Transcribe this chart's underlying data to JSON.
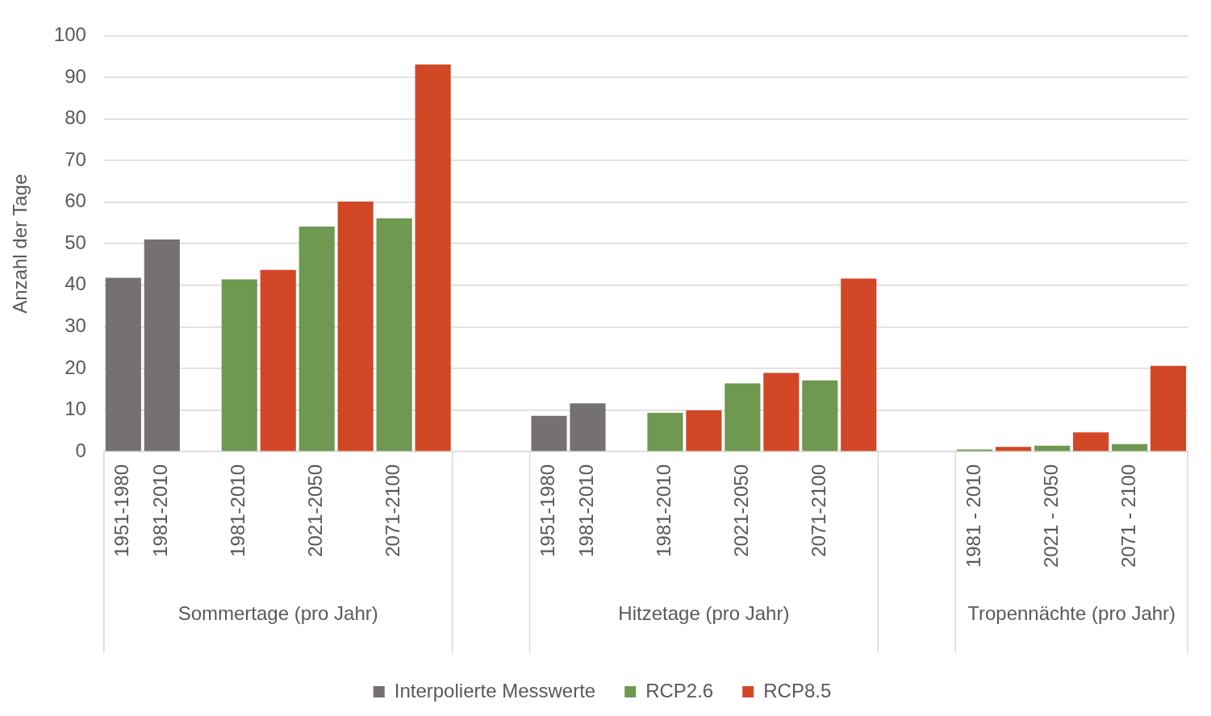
{
  "chart_data": {
    "type": "bar",
    "ylabel": "Anzahl der Tage",
    "categories": [
      "1951-1980",
      "1981-2010",
      null,
      "1981-2010",
      null,
      "2021-2050",
      null,
      "2071-2100",
      null,
      null,
      null,
      "1951-1980",
      "1981-2010",
      null,
      "1981-2010",
      null,
      "2021-2050",
      null,
      "2071-2100",
      null,
      null,
      null,
      "1981 - 2010",
      null,
      "2021 - 2050",
      null,
      "2071 - 2100",
      null
    ],
    "series": [
      {
        "name": "Interpolierte Messwerte",
        "color": "#767171",
        "values": [
          41.8,
          51.0,
          null,
          null,
          null,
          null,
          null,
          null,
          null,
          null,
          null,
          8.6,
          11.6,
          null,
          null,
          null,
          null,
          null,
          null,
          null,
          null,
          null,
          null,
          null,
          null,
          null,
          null,
          null
        ]
      },
      {
        "name": "RCP2.6",
        "color": "#6f9850",
        "values": [
          null,
          null,
          null,
          41.4,
          null,
          54.1,
          null,
          56.1,
          null,
          null,
          null,
          null,
          null,
          null,
          9.3,
          null,
          16.4,
          null,
          17.1,
          null,
          null,
          null,
          0.5,
          null,
          1.4,
          null,
          1.8,
          null
        ]
      },
      {
        "name": "RCP8.5",
        "color": "#d24726",
        "values": [
          null,
          null,
          null,
          null,
          43.7,
          null,
          60.1,
          null,
          93.1,
          null,
          null,
          null,
          null,
          null,
          null,
          9.9,
          null,
          18.9,
          null,
          41.6,
          null,
          null,
          null,
          1.1,
          null,
          4.6,
          null,
          20.6
        ]
      }
    ],
    "annotations": [
      "Sommertage (pro Jahr)",
      "Hitzetage (pro Jahr)",
      "Tropennächte (pro Jahr)"
    ],
    "ylim": [
      0,
      100
    ],
    "yticks": [
      0,
      10,
      20,
      30,
      40,
      50,
      60,
      70,
      80,
      90,
      100
    ],
    "grid": "y",
    "legend": "bottom"
  }
}
